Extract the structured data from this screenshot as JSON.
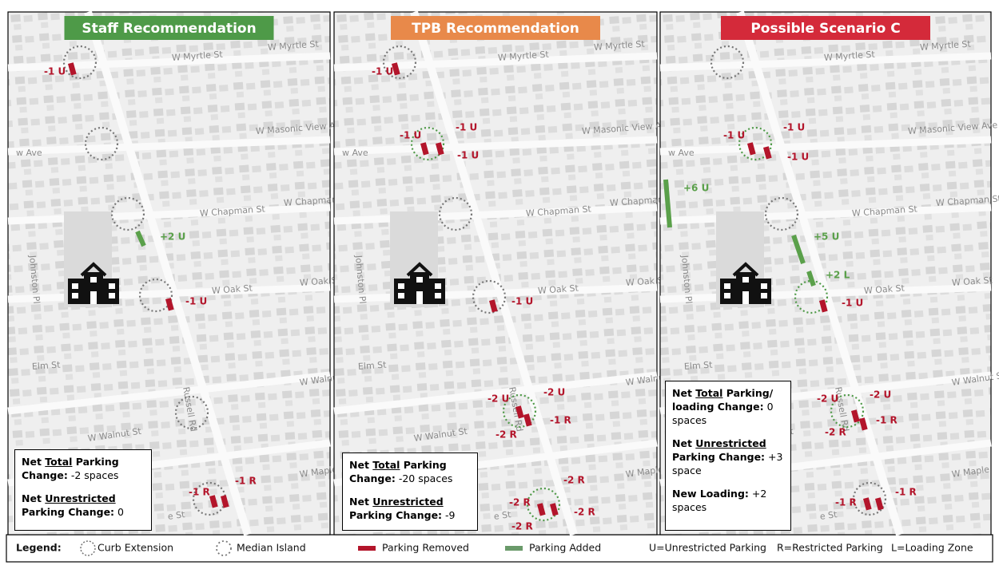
{
  "map_streets": [
    "W Myrtle St",
    "W Myrtle St",
    "W Masonic View Ave",
    "w Ave",
    "W Chapman St",
    "W Chapman St",
    "Johnston Pl",
    "W Oak St",
    "W Oak St",
    "Elm St",
    "Russell Rd",
    "W Walnut St",
    "W Walnut St",
    "W Maple",
    "e St"
  ],
  "panels": [
    {
      "title": "Staff Recommendation",
      "color": "#4e9a48",
      "labels": [
        "-1 U",
        "+2 U",
        "-1 U",
        "-1 R",
        "-1 R"
      ],
      "summary": [
        {
          "pre": "Net",
          "underlined": "Total",
          "label": "Parking Change:",
          "value": "-2 spaces"
        },
        {
          "pre": "Net",
          "underlined": "Unrestricted",
          "label": "Parking Change:",
          "value": "0"
        }
      ]
    },
    {
      "title": "TPB Recommendation",
      "color": "#e8894a",
      "labels": [
        "-1 U",
        "-1 U",
        "-1 U",
        "-1 U",
        "-1 U",
        "-2 U",
        "-2 U",
        "-1 R",
        "-2 R",
        "-2 R",
        "-2 R",
        "-2 R",
        "-2 R"
      ],
      "summary": [
        {
          "pre": "Net",
          "underlined": "Total",
          "label": "Parking Change:",
          "value": "-20 spaces"
        },
        {
          "pre": "Net",
          "underlined": "Unrestricted",
          "label": "Parking Change:",
          "value": "-9"
        }
      ]
    },
    {
      "title": "Possible Scenario C",
      "color": "#d42a3a",
      "labels": [
        "-1 U",
        "-1 U",
        "-1 U",
        "+6 U",
        "+5 U",
        "+2 L",
        "-1 U",
        "-2 U",
        "-2 U",
        "-1 R",
        "-2 R",
        "-1 R",
        "-1 R"
      ],
      "summary": [
        {
          "pre": "Net",
          "underlined": "Total",
          "label": "Parking/ loading Change:",
          "value": "0 spaces"
        },
        {
          "pre": "Net",
          "underlined": "Unrestricted",
          "label": "Parking Change:",
          "value": "+3 space"
        },
        {
          "label": "New Loading:",
          "value": "+2 spaces"
        }
      ]
    }
  ],
  "legend": {
    "title": "Legend:",
    "items": [
      "Curb Extension",
      "Median Island",
      "Parking Removed",
      "Parking Added"
    ],
    "keys": [
      "U=Unrestricted Parking",
      "R=Restricted Parking",
      "L=Loading Zone"
    ]
  }
}
